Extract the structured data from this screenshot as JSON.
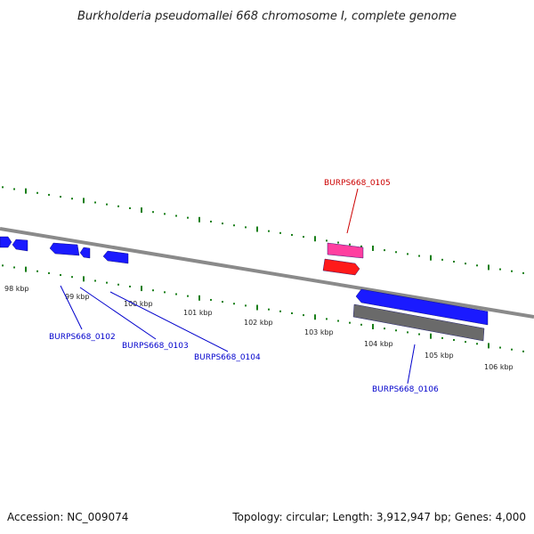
{
  "title": "Burkholderia pseudomallei 668 chromosome I, complete genome",
  "footer": {
    "accession": "Accession: NC_009074",
    "summary": "Topology: circular; Length: 3,912,947 bp; Genes: 4,000"
  },
  "ticks": [
    {
      "label": "98 kbp",
      "kbp": 98
    },
    {
      "label": "99 kbp",
      "kbp": 99
    },
    {
      "label": "100 kbp",
      "kbp": 100
    },
    {
      "label": "101 kbp",
      "kbp": 101
    },
    {
      "label": "102 kbp",
      "kbp": 102
    },
    {
      "label": "103 kbp",
      "kbp": 103
    },
    {
      "label": "104 kbp",
      "kbp": 104
    },
    {
      "label": "105 kbp",
      "kbp": 105
    },
    {
      "label": "106 kbp",
      "kbp": 106
    }
  ],
  "genes": [
    {
      "id": "BURPS668_0102",
      "color": "#0000cc"
    },
    {
      "id": "BURPS668_0103",
      "color": "#0000cc"
    },
    {
      "id": "BURPS668_0104",
      "color": "#0000cc"
    },
    {
      "id": "BURPS668_0105",
      "color": "#cc0000"
    },
    {
      "id": "BURPS668_0106",
      "color": "#0000cc"
    }
  ],
  "colors": {
    "backbone": "#888888",
    "tick_marks": "#1a7f1a",
    "cds_forward": "#1a1aff",
    "cds_reverse": "#1a1aff",
    "rna_pink": "#ff3fa0",
    "rna_red": "#ff1a1a",
    "gene_gray": "#6a6a6a"
  }
}
